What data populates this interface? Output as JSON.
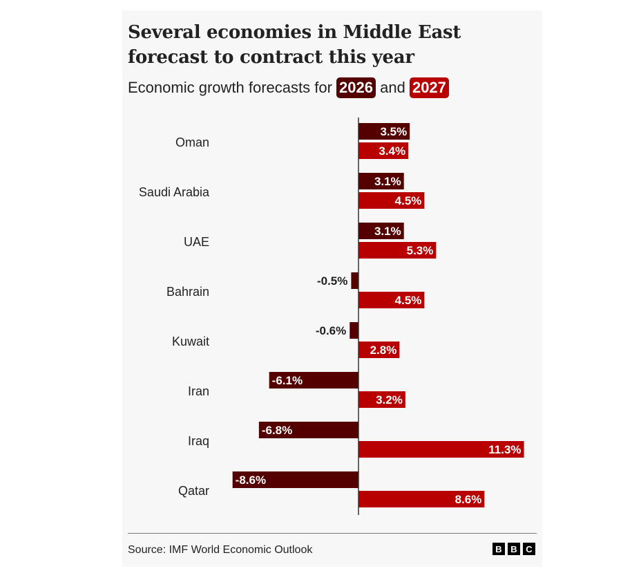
{
  "chart_data": {
    "type": "bar",
    "orientation": "horizontal",
    "title": "Several economies in Middle East forecast to contract this year",
    "subtitle_prefix": "Economic growth forecasts for",
    "subtitle_joiner": "and",
    "categories": [
      "Oman",
      "Saudi Arabia",
      "UAE",
      "Bahrain",
      "Kuwait",
      "Iran",
      "Iraq",
      "Qatar"
    ],
    "series": [
      {
        "name": "2026",
        "color": "#550000",
        "values": [
          3.5,
          3.1,
          3.1,
          -0.5,
          -0.6,
          -6.1,
          -6.8,
          -8.6
        ],
        "labels": [
          "3.5%",
          "3.1%",
          "3.1%",
          "-0.5%",
          "-0.6%",
          "-6.1%",
          "-6.8%",
          "-8.6%"
        ]
      },
      {
        "name": "2027",
        "color": "#b80000",
        "values": [
          3.4,
          4.5,
          5.3,
          4.5,
          2.8,
          3.2,
          11.3,
          8.6
        ],
        "labels": [
          "3.4%",
          "4.5%",
          "5.3%",
          "4.5%",
          "2.8%",
          "3.2%",
          "11.3%",
          "8.6%"
        ]
      }
    ],
    "unit": "%",
    "grid": false
  },
  "footer": {
    "source": "Source: IMF World Economic Outlook",
    "logo": [
      "B",
      "B",
      "C"
    ]
  }
}
